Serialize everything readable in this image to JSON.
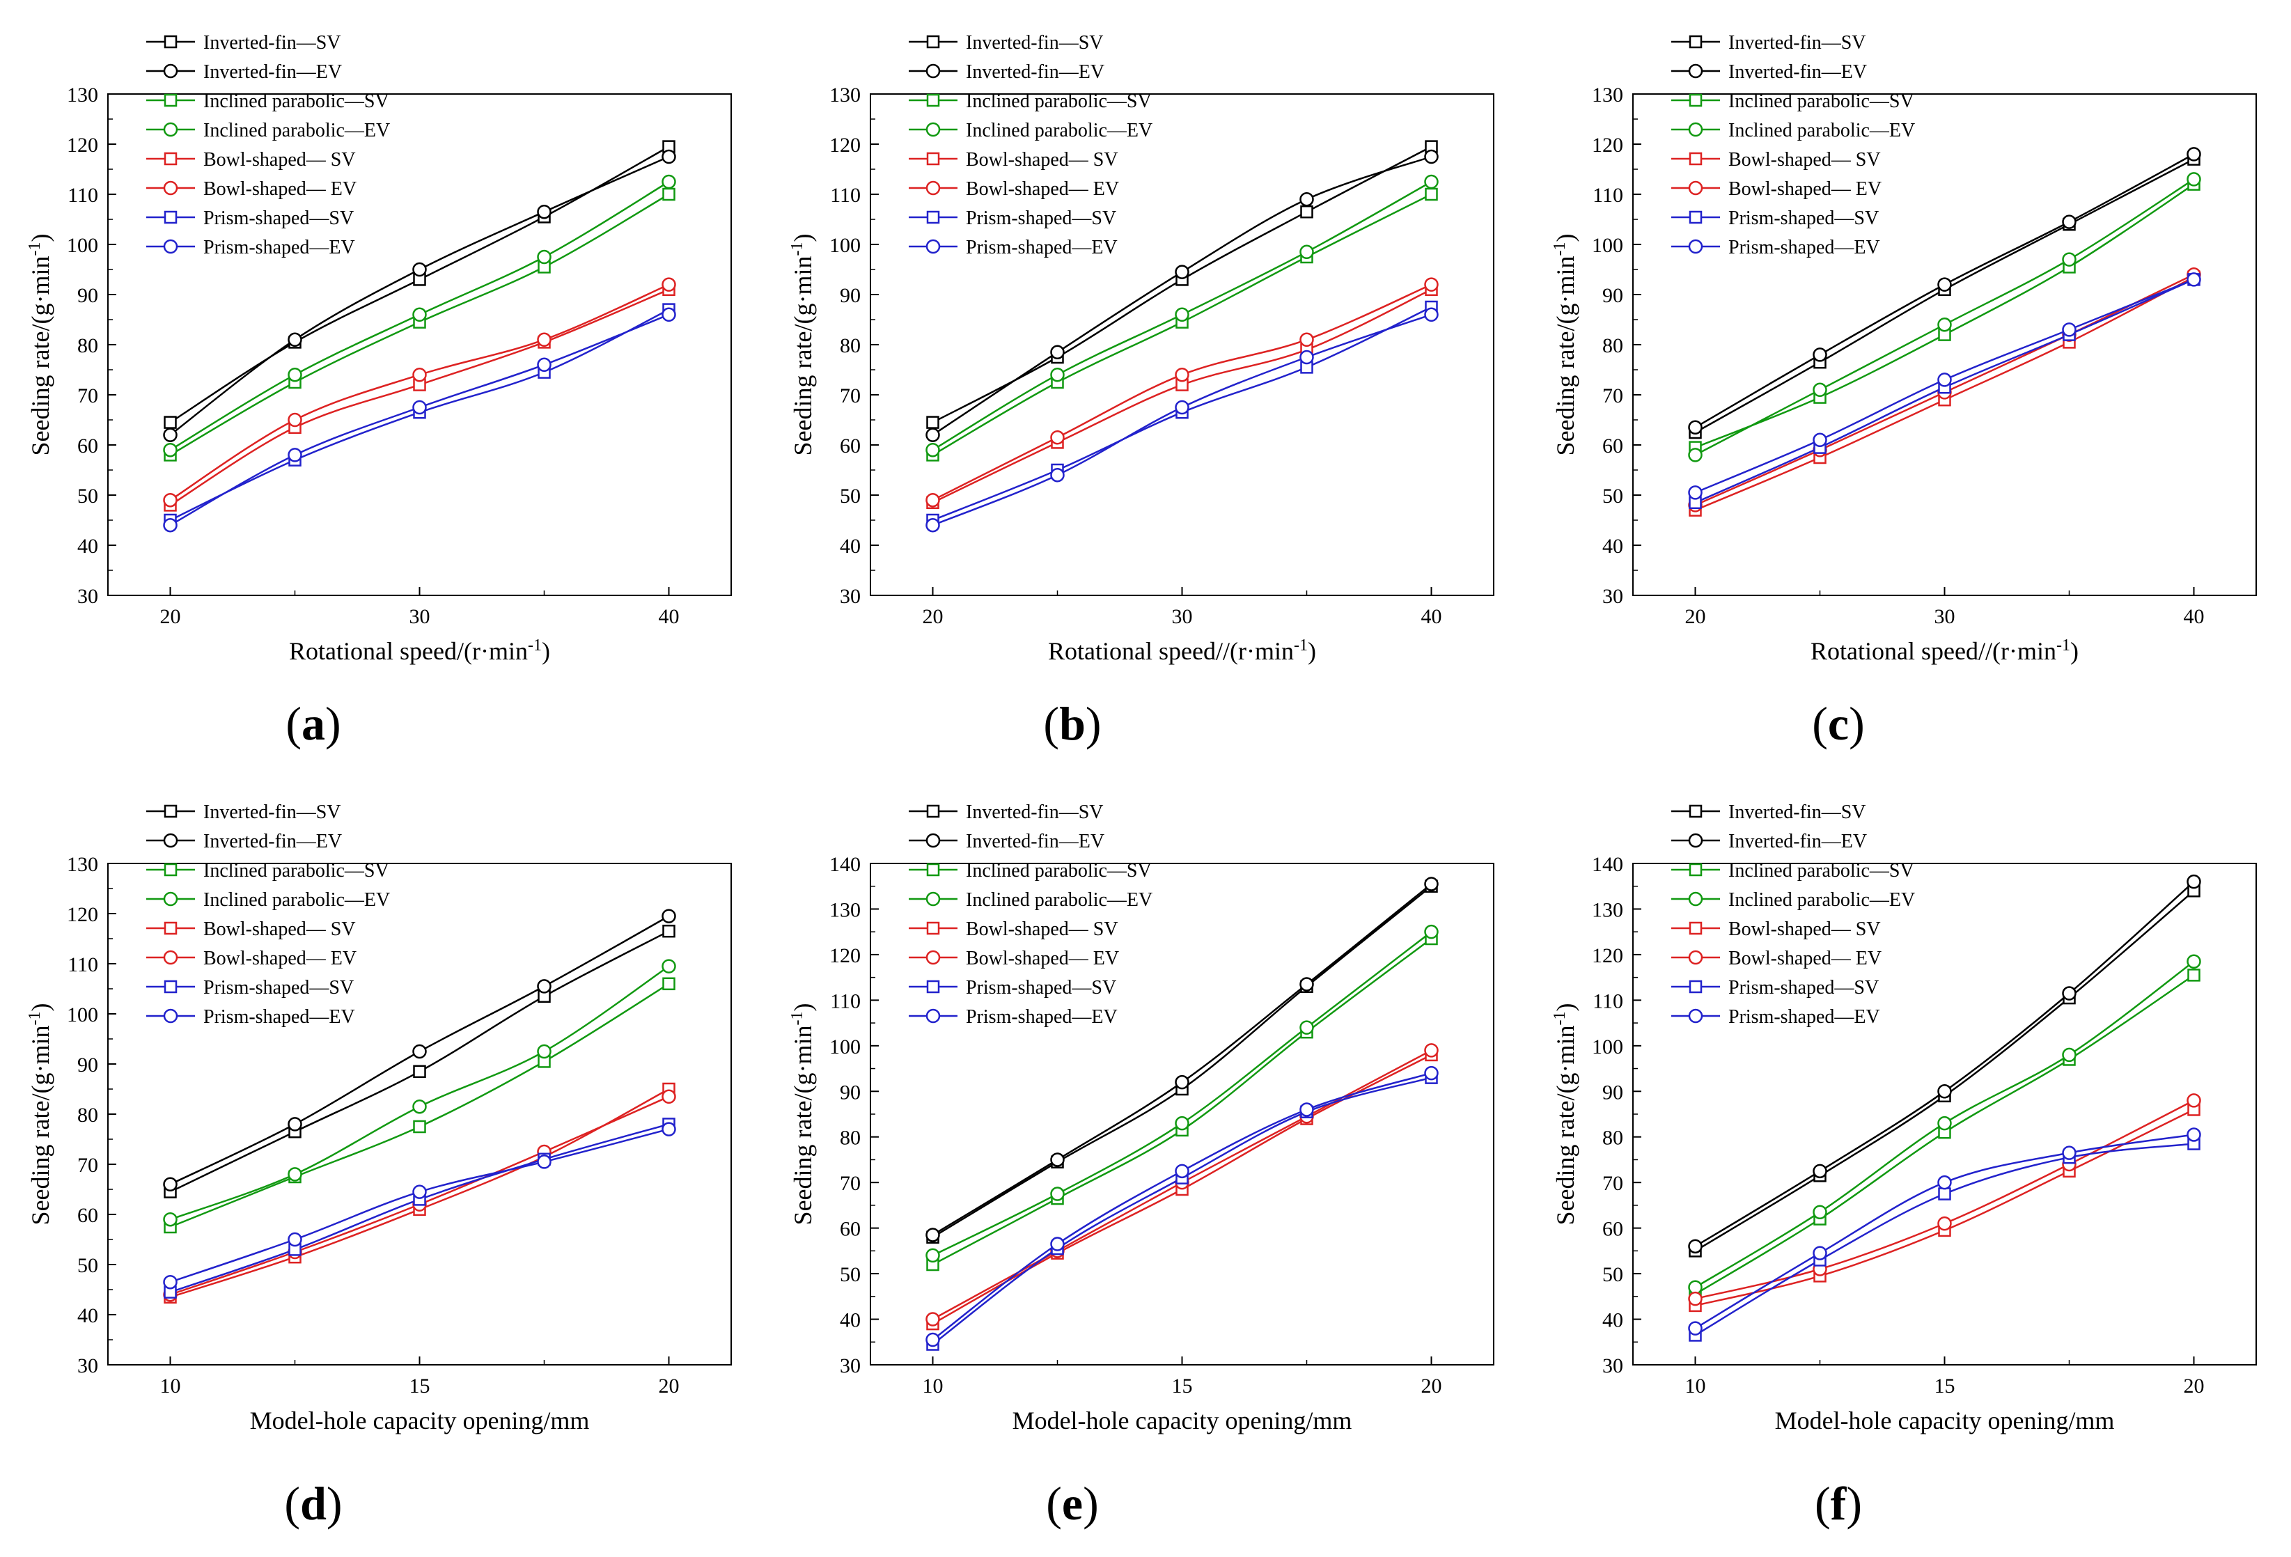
{
  "chart_data": [
    {
      "id": "a",
      "type": "line",
      "caption_letter": "a",
      "xlabel": "Rotational speed/(r·min",
      "xlabel_sup": "-1",
      "xlabel_close": ")",
      "ylabel": "Seeding rate/(g·min",
      "ylabel_sup": "-1",
      "ylabel_close": ")",
      "x": [
        20,
        25,
        30,
        35,
        40
      ],
      "xticks": [
        20,
        30,
        40
      ],
      "yticks": [
        30,
        40,
        50,
        60,
        70,
        80,
        90,
        100,
        110,
        120,
        130
      ],
      "xlim": [
        17.5,
        42.5
      ],
      "ylim": [
        30,
        130
      ],
      "series": [
        {
          "name": "Inverted-fin—SV",
          "color": "#000000",
          "marker": "square",
          "values": [
            64.5,
            80.5,
            93,
            105.5,
            119.5
          ]
        },
        {
          "name": "Inverted-fin—EV",
          "color": "#000000",
          "marker": "circle",
          "values": [
            62,
            81,
            95,
            106.5,
            117.5
          ]
        },
        {
          "name": "Inclined parabolic—SV",
          "color": "#119911",
          "marker": "square",
          "values": [
            58,
            72.5,
            84.5,
            95.5,
            110
          ]
        },
        {
          "name": "Inclined parabolic—EV",
          "color": "#119911",
          "marker": "circle",
          "values": [
            59,
            74,
            86,
            97.5,
            112.5
          ]
        },
        {
          "name": "Bowl-shaped— SV",
          "color": "#dd2222",
          "marker": "square",
          "values": [
            48,
            63.5,
            72,
            80.5,
            91
          ]
        },
        {
          "name": "Bowl-shaped— EV",
          "color": "#dd2222",
          "marker": "circle",
          "values": [
            49,
            65,
            74,
            81,
            92
          ]
        },
        {
          "name": "Prism-shaped—SV",
          "color": "#2222cc",
          "marker": "square",
          "values": [
            45,
            57,
            66.5,
            74.5,
            87
          ]
        },
        {
          "name": "Prism-shaped—EV",
          "color": "#2222cc",
          "marker": "circle",
          "values": [
            44,
            58,
            67.5,
            76,
            86
          ]
        }
      ]
    },
    {
      "id": "b",
      "type": "line",
      "caption_letter": "b",
      "xlabel": "Rotational speed//(r·min",
      "xlabel_sup": "-1",
      "xlabel_close": ")",
      "ylabel": "Seeding rate/(g·min",
      "ylabel_sup": "-1",
      "ylabel_close": ")",
      "x": [
        20,
        25,
        30,
        35,
        40
      ],
      "xticks": [
        20,
        30,
        40
      ],
      "yticks": [
        30,
        40,
        50,
        60,
        70,
        80,
        90,
        100,
        110,
        120,
        130
      ],
      "xlim": [
        17.5,
        42.5
      ],
      "ylim": [
        30,
        130
      ],
      "series": [
        {
          "name": "Inverted-fin—SV",
          "color": "#000000",
          "marker": "square",
          "values": [
            64.5,
            77.5,
            93,
            106.5,
            119.5
          ]
        },
        {
          "name": "Inverted-fin—EV",
          "color": "#000000",
          "marker": "circle",
          "values": [
            62,
            78.5,
            94.5,
            109,
            117.5
          ]
        },
        {
          "name": "Inclined parabolic—SV",
          "color": "#119911",
          "marker": "square",
          "values": [
            58,
            72.5,
            84.5,
            97.5,
            110
          ]
        },
        {
          "name": "Inclined parabolic—EV",
          "color": "#119911",
          "marker": "circle",
          "values": [
            59,
            74,
            86,
            98.5,
            112.5
          ]
        },
        {
          "name": "Bowl-shaped— SV",
          "color": "#dd2222",
          "marker": "square",
          "values": [
            48.5,
            60.5,
            72,
            79,
            91
          ]
        },
        {
          "name": "Bowl-shaped— EV",
          "color": "#dd2222",
          "marker": "circle",
          "values": [
            49,
            61.5,
            74,
            81,
            92
          ]
        },
        {
          "name": "Prism-shaped—SV",
          "color": "#2222cc",
          "marker": "square",
          "values": [
            45,
            55,
            66.5,
            75.5,
            87.5
          ]
        },
        {
          "name": "Prism-shaped—EV",
          "color": "#2222cc",
          "marker": "circle",
          "values": [
            44,
            54,
            67.5,
            77.5,
            86
          ]
        }
      ]
    },
    {
      "id": "c",
      "type": "line",
      "caption_letter": "c",
      "xlabel": "Rotational speed//(r·min",
      "xlabel_sup": "-1",
      "xlabel_close": ")",
      "ylabel": "Seeding rate/(g·min",
      "ylabel_sup": "-1",
      "ylabel_close": ")",
      "x": [
        20,
        25,
        30,
        35,
        40
      ],
      "xticks": [
        20,
        30,
        40
      ],
      "yticks": [
        30,
        40,
        50,
        60,
        70,
        80,
        90,
        100,
        110,
        120,
        130
      ],
      "xlim": [
        17.5,
        42.5
      ],
      "ylim": [
        30,
        130
      ],
      "series": [
        {
          "name": "Inverted-fin—SV",
          "color": "#000000",
          "marker": "square",
          "values": [
            62.5,
            76.5,
            91,
            104,
            117
          ]
        },
        {
          "name": "Inverted-fin—EV",
          "color": "#000000",
          "marker": "circle",
          "values": [
            63.5,
            78,
            92,
            104.5,
            118
          ]
        },
        {
          "name": "Inclined parabolic—SV",
          "color": "#119911",
          "marker": "square",
          "values": [
            59.5,
            69.5,
            82,
            95.5,
            112
          ]
        },
        {
          "name": "Inclined parabolic—EV",
          "color": "#119911",
          "marker": "circle",
          "values": [
            58,
            71,
            84,
            97,
            113
          ]
        },
        {
          "name": "Bowl-shaped— SV",
          "color": "#dd2222",
          "marker": "square",
          "values": [
            47,
            57.5,
            69,
            80.5,
            93.5
          ]
        },
        {
          "name": "Bowl-shaped— EV",
          "color": "#dd2222",
          "marker": "circle",
          "values": [
            48,
            59,
            70.5,
            82,
            94
          ]
        },
        {
          "name": "Prism-shaped—SV",
          "color": "#2222cc",
          "marker": "square",
          "values": [
            48.5,
            59.5,
            71.5,
            82,
            93
          ]
        },
        {
          "name": "Prism-shaped—EV",
          "color": "#2222cc",
          "marker": "circle",
          "values": [
            50.5,
            61,
            73,
            83,
            93
          ]
        }
      ]
    },
    {
      "id": "d",
      "type": "line",
      "caption_letter": "d",
      "xlabel": "Model-hole capacity opening/mm",
      "xlabel_sup": "",
      "xlabel_close": "",
      "ylabel": "Seeding rate/(g·min",
      "ylabel_sup": "-1",
      "ylabel_close": ")",
      "x": [
        10,
        12.5,
        15,
        17.5,
        20
      ],
      "xticks": [
        10,
        15,
        20
      ],
      "yticks": [
        30,
        40,
        50,
        60,
        70,
        80,
        90,
        100,
        110,
        120,
        130
      ],
      "xlim": [
        8.75,
        21.25
      ],
      "ylim": [
        30,
        130
      ],
      "series": [
        {
          "name": "Inverted-fin—SV",
          "color": "#000000",
          "marker": "square",
          "values": [
            64.5,
            76.5,
            88.5,
            103.5,
            116.5
          ]
        },
        {
          "name": "Inverted-fin—EV",
          "color": "#000000",
          "marker": "circle",
          "values": [
            66,
            78,
            92.5,
            105.5,
            119.5
          ]
        },
        {
          "name": "Inclined parabolic—SV",
          "color": "#119911",
          "marker": "square",
          "values": [
            57.5,
            67.5,
            77.5,
            90.5,
            106
          ]
        },
        {
          "name": "Inclined parabolic—EV",
          "color": "#119911",
          "marker": "circle",
          "values": [
            59,
            68,
            81.5,
            92.5,
            109.5
          ]
        },
        {
          "name": "Bowl-shaped— SV",
          "color": "#dd2222",
          "marker": "square",
          "values": [
            43.5,
            51.5,
            61,
            71.5,
            85
          ]
        },
        {
          "name": "Bowl-shaped— EV",
          "color": "#dd2222",
          "marker": "circle",
          "values": [
            44,
            52.5,
            62,
            72.5,
            83.5
          ]
        },
        {
          "name": "Prism-shaped—SV",
          "color": "#2222cc",
          "marker": "square",
          "values": [
            44.5,
            53,
            63,
            71,
            78
          ]
        },
        {
          "name": "Prism-shaped—EV",
          "color": "#2222cc",
          "marker": "circle",
          "values": [
            46.5,
            55,
            64.5,
            70.5,
            77
          ]
        }
      ]
    },
    {
      "id": "e",
      "type": "line",
      "caption_letter": "e",
      "xlabel": "Model-hole capacity opening/mm",
      "xlabel_sup": "",
      "xlabel_close": "",
      "ylabel": "Seeding rate/(g·min",
      "ylabel_sup": "-1",
      "ylabel_close": ")",
      "x": [
        10,
        12.5,
        15,
        17.5,
        20
      ],
      "xticks": [
        10,
        15,
        20
      ],
      "yticks": [
        30,
        40,
        50,
        60,
        70,
        80,
        90,
        100,
        110,
        120,
        130,
        140
      ],
      "xlim": [
        8.75,
        21.25
      ],
      "ylim": [
        30,
        140
      ],
      "series": [
        {
          "name": "Inverted-fin—SV",
          "color": "#000000",
          "marker": "square",
          "values": [
            58,
            74.5,
            90.5,
            113,
            135
          ]
        },
        {
          "name": "Inverted-fin—EV",
          "color": "#000000",
          "marker": "circle",
          "values": [
            58.5,
            75,
            92,
            113.5,
            135.5
          ]
        },
        {
          "name": "Inclined parabolic—SV",
          "color": "#119911",
          "marker": "square",
          "values": [
            52,
            66.5,
            81.5,
            103,
            123.5
          ]
        },
        {
          "name": "Inclined parabolic—EV",
          "color": "#119911",
          "marker": "circle",
          "values": [
            54,
            67.5,
            83,
            104,
            125
          ]
        },
        {
          "name": "Bowl-shaped— SV",
          "color": "#dd2222",
          "marker": "square",
          "values": [
            39,
            54.5,
            68.5,
            84,
            98
          ]
        },
        {
          "name": "Bowl-shaped— EV",
          "color": "#dd2222",
          "marker": "circle",
          "values": [
            40,
            55,
            70,
            84.5,
            99
          ]
        },
        {
          "name": "Prism-shaped—SV",
          "color": "#2222cc",
          "marker": "square",
          "values": [
            34.5,
            55.5,
            71,
            85.5,
            93
          ]
        },
        {
          "name": "Prism-shaped—EV",
          "color": "#2222cc",
          "marker": "circle",
          "values": [
            35.5,
            56.5,
            72.5,
            86,
            94
          ]
        }
      ]
    },
    {
      "id": "f",
      "type": "line",
      "caption_letter": "f",
      "xlabel": "Model-hole capacity opening/mm",
      "xlabel_sup": "",
      "xlabel_close": "",
      "ylabel": "Seeding rate/(g·min",
      "ylabel_sup": "-1",
      "ylabel_close": ")",
      "x": [
        10,
        12.5,
        15,
        17.5,
        20
      ],
      "xticks": [
        10,
        15,
        20
      ],
      "yticks": [
        30,
        40,
        50,
        60,
        70,
        80,
        90,
        100,
        110,
        120,
        130,
        140
      ],
      "xlim": [
        8.75,
        21.25
      ],
      "ylim": [
        30,
        140
      ],
      "series": [
        {
          "name": "Inverted-fin—SV",
          "color": "#000000",
          "marker": "square",
          "values": [
            55,
            71.5,
            89,
            110.5,
            134
          ]
        },
        {
          "name": "Inverted-fin—EV",
          "color": "#000000",
          "marker": "circle",
          "values": [
            56,
            72.5,
            90,
            111.5,
            136
          ]
        },
        {
          "name": "Inclined parabolic—SV",
          "color": "#119911",
          "marker": "square",
          "values": [
            45.5,
            62,
            81,
            97,
            115.5
          ]
        },
        {
          "name": "Inclined parabolic—EV",
          "color": "#119911",
          "marker": "circle",
          "values": [
            47,
            63.5,
            83,
            98,
            118.5
          ]
        },
        {
          "name": "Bowl-shaped— SV",
          "color": "#dd2222",
          "marker": "square",
          "values": [
            43,
            49.5,
            59.5,
            72.5,
            86
          ]
        },
        {
          "name": "Bowl-shaped— EV",
          "color": "#dd2222",
          "marker": "circle",
          "values": [
            44.5,
            51,
            61,
            74,
            88
          ]
        },
        {
          "name": "Prism-shaped—SV",
          "color": "#2222cc",
          "marker": "square",
          "values": [
            36.5,
            53,
            67.5,
            75.5,
            78.5
          ]
        },
        {
          "name": "Prism-shaped—EV",
          "color": "#2222cc",
          "marker": "circle",
          "values": [
            38,
            54.5,
            70,
            76.5,
            80.5
          ]
        }
      ]
    }
  ]
}
